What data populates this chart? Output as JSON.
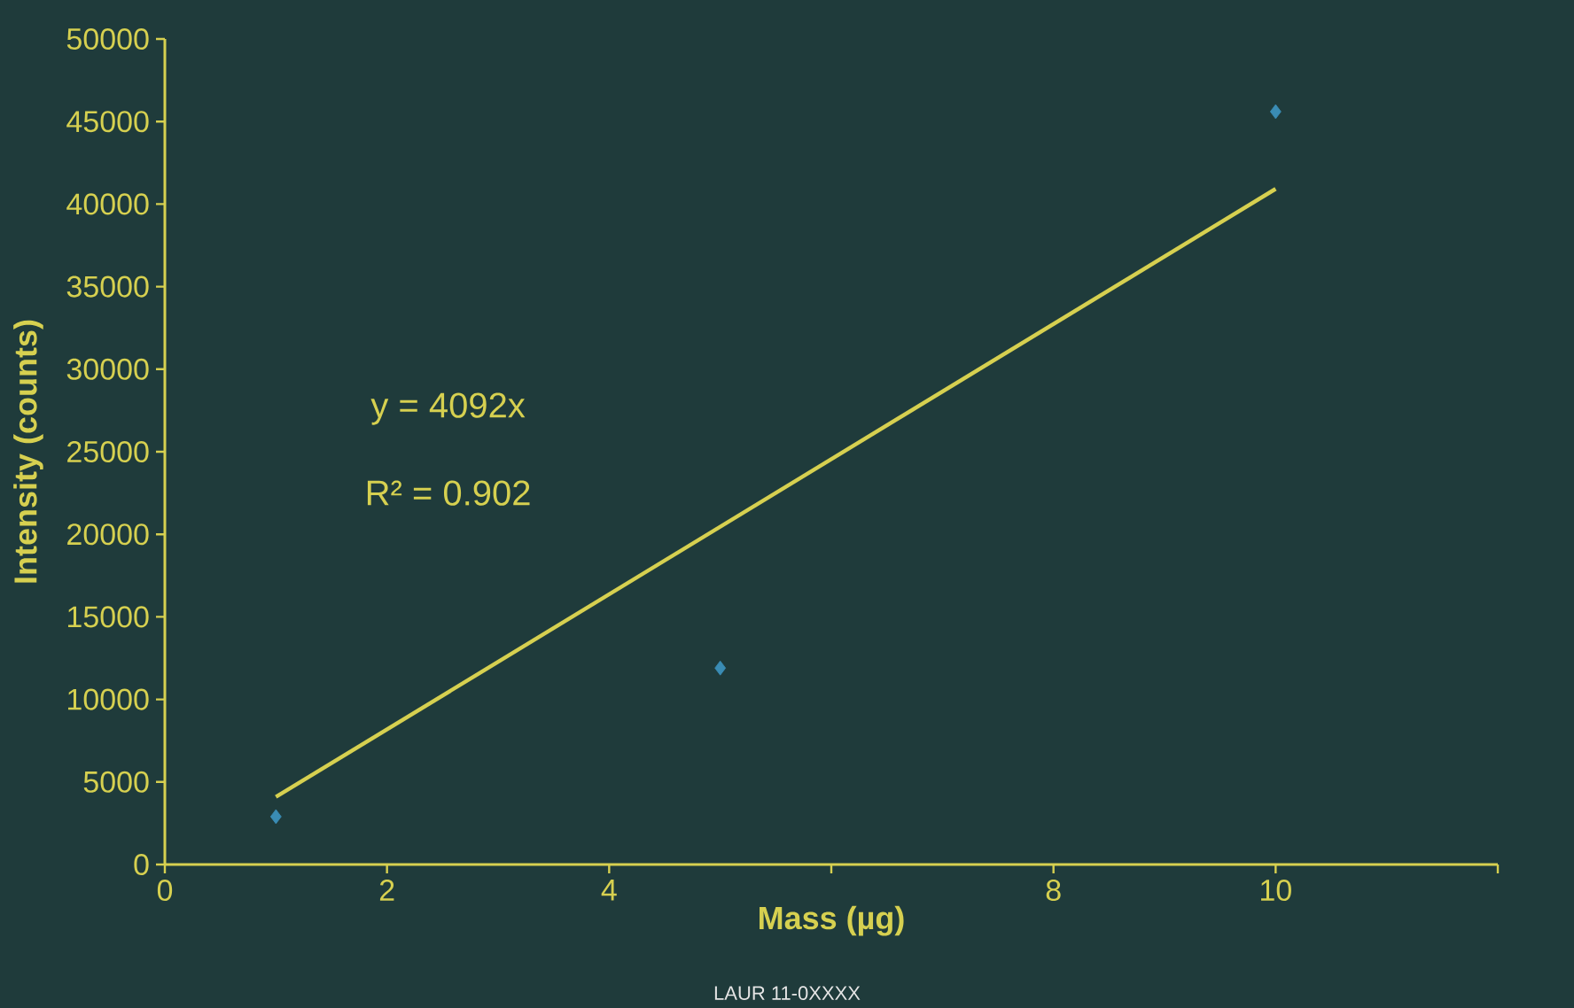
{
  "chart_data": {
    "type": "scatter",
    "xlabel": "Mass (µg)",
    "ylabel": "Intensity (counts)",
    "xlim": [
      0,
      12
    ],
    "ylim": [
      0,
      50000
    ],
    "xticks": [
      0,
      2,
      4,
      {
        "value": 6,
        "label": null
      },
      8,
      10,
      {
        "value": 12,
        "label": null
      }
    ],
    "yticks": [
      0,
      5000,
      10000,
      15000,
      20000,
      25000,
      30000,
      35000,
      40000,
      45000,
      50000
    ],
    "grid": false,
    "marker": "diamond",
    "series": [
      {
        "color": "#3a8cb4",
        "x": [
          1,
          5,
          10
        ],
        "values": [
          2900,
          11900,
          45600
        ]
      },
      {
        "type": "line",
        "color": "#d6d050",
        "x": [
          1,
          10
        ],
        "values": [
          4092,
          40920
        ],
        "marker": "none"
      }
    ],
    "annotations": [
      "y = 4092x",
      "R² = 0.902",
      "LAUR 11-0XXXX"
    ]
  }
}
